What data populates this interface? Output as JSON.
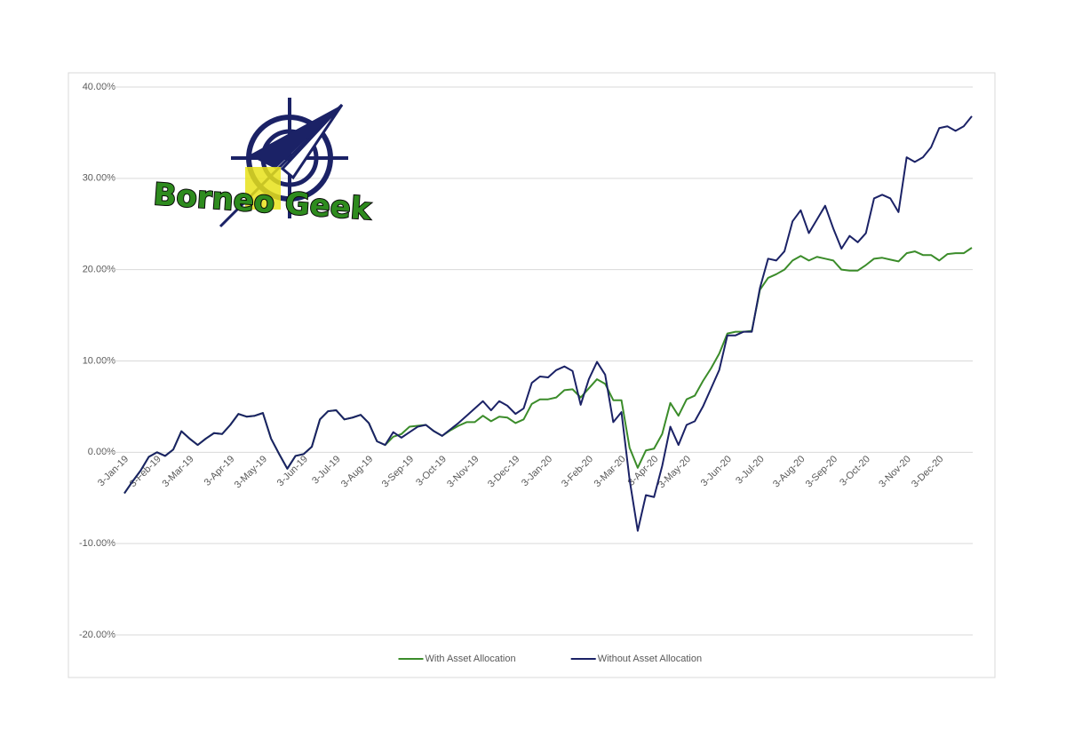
{
  "chart_data": {
    "type": "line",
    "logo": {
      "text": "Borneo Geek"
    },
    "categories": [
      "3-Jan-19",
      null,
      null,
      null,
      "3-Feb-19",
      null,
      null,
      null,
      "3-Mar-19",
      null,
      null,
      null,
      null,
      "3-Apr-19",
      null,
      null,
      null,
      "3-May-19",
      null,
      null,
      null,
      null,
      "3-Jun-19",
      null,
      null,
      null,
      "3-Jul-19",
      null,
      null,
      null,
      "3-Aug-19",
      null,
      null,
      null,
      null,
      "3-Sep-19",
      null,
      null,
      null,
      "3-Oct-19",
      null,
      null,
      null,
      "3-Nov-19",
      null,
      null,
      null,
      null,
      "3-Dec-19",
      null,
      null,
      null,
      "3-Jan-20",
      null,
      null,
      null,
      null,
      "3-Feb-20",
      null,
      null,
      null,
      "3-Mar-20",
      null,
      null,
      null,
      "3-Apr-20",
      null,
      null,
      null,
      "3-May-20",
      null,
      null,
      null,
      null,
      "3-Jun-20",
      null,
      null,
      null,
      "3-Jul-20",
      null,
      null,
      null,
      null,
      "3-Aug-20",
      null,
      null,
      null,
      "3-Sep-20",
      null,
      null,
      null,
      "3-Oct-20",
      null,
      null,
      null,
      null,
      "3-Nov-20",
      null,
      null,
      null,
      "3-Dec-20",
      null,
      null,
      null,
      null
    ],
    "series": [
      {
        "name": "With Asset Allocation",
        "color": "#3b8c2a",
        "values": [
          -4.5,
          -3.2,
          -2.0,
          -0.5,
          0.0,
          -0.4,
          0.3,
          2.3,
          1.5,
          0.8,
          1.5,
          2.1,
          2.0,
          3.0,
          4.2,
          3.9,
          4.0,
          4.3,
          1.5,
          -0.2,
          -1.8,
          -0.4,
          -0.2,
          0.6,
          3.6,
          4.5,
          4.6,
          3.6,
          3.8,
          4.1,
          3.2,
          1.2,
          0.8,
          1.7,
          2.0,
          2.8,
          2.9,
          3.0,
          2.3,
          1.8,
          2.4,
          2.9,
          3.3,
          3.3,
          4.0,
          3.4,
          3.9,
          3.8,
          3.2,
          3.6,
          5.3,
          5.8,
          5.8,
          6.0,
          6.8,
          6.9,
          6.0,
          7.0,
          8.0,
          7.5,
          5.7,
          5.7,
          0.5,
          -1.7,
          0.2,
          0.4,
          2.0,
          5.4,
          4.0,
          5.8,
          6.2,
          7.8,
          9.2,
          10.8,
          13.0,
          13.2,
          13.2,
          13.3,
          17.8,
          19.1,
          19.5,
          20.0,
          21.0,
          21.5,
          21.0,
          21.4,
          21.2,
          21.0,
          20.0,
          19.9,
          19.9,
          20.5,
          21.2,
          21.3,
          21.1,
          20.9,
          21.8,
          22.0,
          21.6,
          21.6,
          21.0,
          21.7,
          21.8,
          21.8,
          22.4
        ]
      },
      {
        "name": "Without Asset Allocation",
        "color": "#1b2266",
        "values": [
          -4.5,
          -3.2,
          -2.0,
          -0.5,
          0.0,
          -0.4,
          0.3,
          2.3,
          1.5,
          0.8,
          1.5,
          2.1,
          2.0,
          3.0,
          4.2,
          3.9,
          4.0,
          4.3,
          1.5,
          -0.2,
          -1.8,
          -0.4,
          -0.2,
          0.6,
          3.6,
          4.5,
          4.6,
          3.6,
          3.8,
          4.1,
          3.2,
          1.2,
          0.8,
          2.2,
          1.6,
          2.2,
          2.8,
          3.0,
          2.3,
          1.8,
          2.5,
          3.2,
          4.0,
          4.8,
          5.6,
          4.6,
          5.6,
          5.1,
          4.2,
          4.8,
          7.6,
          8.3,
          8.2,
          9.0,
          9.4,
          8.9,
          5.2,
          8.0,
          9.9,
          8.5,
          3.3,
          4.4,
          -3.0,
          -8.6,
          -4.7,
          -4.9,
          -1.5,
          2.8,
          0.8,
          3.0,
          3.4,
          5.0,
          7.0,
          9.0,
          12.8,
          12.8,
          13.2,
          13.2,
          18.0,
          21.2,
          21.0,
          22.0,
          25.3,
          26.5,
          24.0,
          25.5,
          27.0,
          24.5,
          22.3,
          23.7,
          23.0,
          24.0,
          27.8,
          28.2,
          27.8,
          26.3,
          32.3,
          31.8,
          32.3,
          33.4,
          35.5,
          35.7,
          35.2,
          35.7,
          36.8
        ]
      }
    ],
    "ylim": [
      -20,
      40
    ],
    "yticks": [
      {
        "value": -20,
        "label": "-20.00%"
      },
      {
        "value": -10,
        "label": "-10.00%"
      },
      {
        "value": 0,
        "label": "0.00%"
      },
      {
        "value": 10,
        "label": "10.00%"
      },
      {
        "value": 20,
        "label": "20.00%"
      },
      {
        "value": 30,
        "label": "30.00%"
      },
      {
        "value": 40,
        "label": "40.00%"
      }
    ],
    "grid": true,
    "legend": "bottom"
  }
}
